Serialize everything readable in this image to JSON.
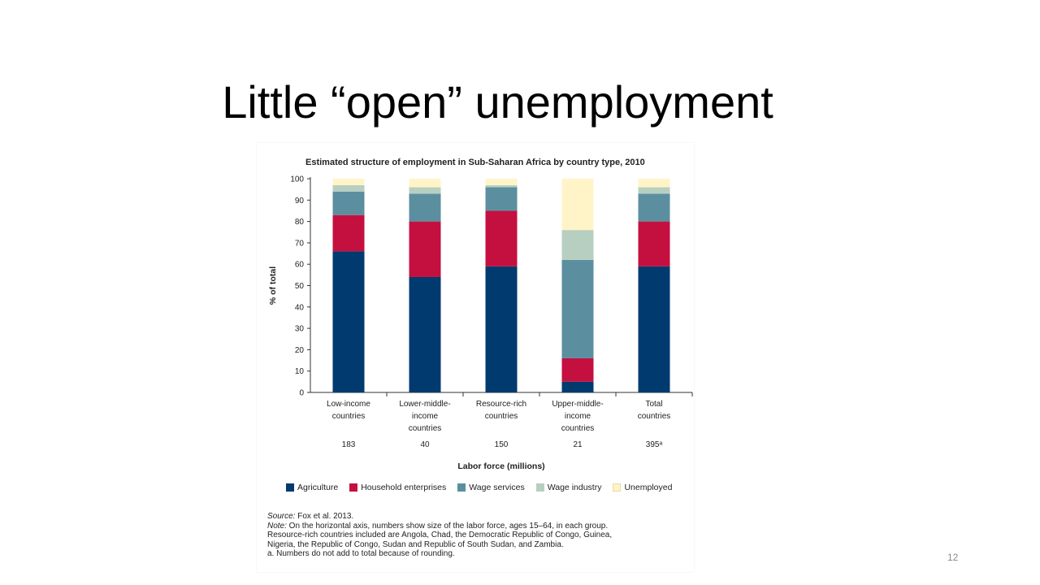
{
  "slide": {
    "title": "Little “open” unemployment",
    "page_number": "12"
  },
  "colors": {
    "agriculture": "#003A6F",
    "household": "#C4103F",
    "wage_services": "#5B8FA0",
    "wage_industry": "#B7CFC0",
    "unemployed": "#FFF4C8"
  },
  "chart_data": {
    "type": "bar",
    "stacked": true,
    "title": "Estimated structure of employment in Sub-Saharan Africa by country type, 2010",
    "ylabel": "% of total",
    "xlabel": "Labor force (millions)",
    "ylim": [
      0,
      100
    ],
    "yticks": [
      "0",
      "10",
      "20",
      "30",
      "40",
      "50",
      "60",
      "70",
      "80",
      "90",
      "100"
    ],
    "categories": [
      [
        "Low-income",
        "countries"
      ],
      [
        "Lower-middle-",
        "income",
        "countries"
      ],
      [
        "Resource-rich",
        "countries"
      ],
      [
        "Upper-middle-",
        "income",
        "countries"
      ],
      [
        "Total",
        "countries"
      ]
    ],
    "labor_force": [
      "183",
      "40",
      "150",
      "21",
      "395ᵃ"
    ],
    "series": [
      {
        "name": "Agriculture",
        "values": [
          66,
          54,
          59,
          5,
          59
        ]
      },
      {
        "name": "Household enterprises",
        "values": [
          17,
          26,
          26,
          11,
          21
        ]
      },
      {
        "name": "Wage services",
        "values": [
          11,
          13,
          11,
          46,
          13
        ]
      },
      {
        "name": "Wage industry",
        "values": [
          3,
          3,
          1,
          14,
          3
        ]
      },
      {
        "name": "Unemployed",
        "values": [
          3,
          4,
          3,
          24,
          4
        ]
      }
    ],
    "legend_position": "bottom",
    "notes": {
      "source_label": "Source:",
      "source_text": " Fox et al. 2013.",
      "note_label": "Note:",
      "note_line1": " On the horizontal axis, numbers show size of the labor force, ages 15–64, in each group.",
      "note_line2": "Resource-rich countries included are Angola, Chad, the Democratic Republic of Congo, Guinea,",
      "note_line3": "Nigeria, the Republic of Congo, Sudan and Republic of South Sudan, and Zambia.",
      "note_line4": "a. Numbers do not add to total because of rounding."
    }
  }
}
